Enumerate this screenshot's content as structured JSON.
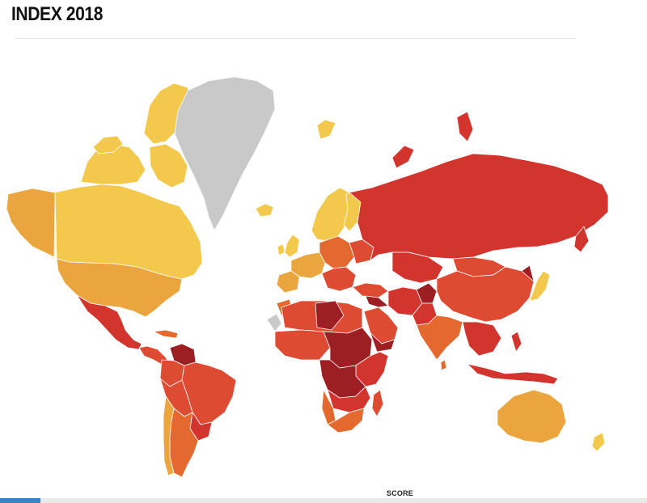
{
  "header": {
    "title": "INDEX 2018"
  },
  "legend": {
    "label": "SCORE"
  },
  "colors": {
    "score_high": "#f2c94c",
    "score_upper_mid": "#eba53f",
    "score_mid": "#e3692f",
    "score_lower_mid": "#dd4b32",
    "score_low": "#d2352e",
    "score_lowest": "#9c1f23",
    "no_data": "#c9c9c9",
    "accent": "#3b83c7"
  }
}
